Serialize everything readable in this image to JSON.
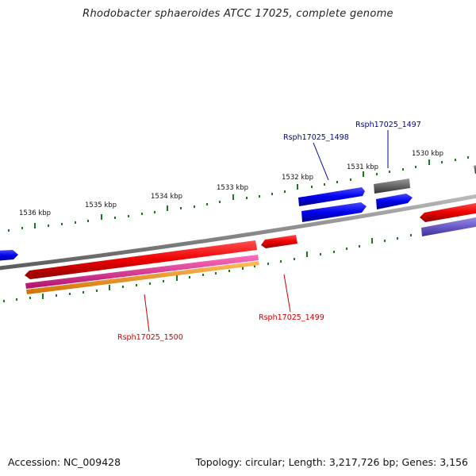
{
  "title": "Rhodobacter sphaeroides ATCC 17025, complete genome",
  "accession": "Accession: NC_009428",
  "stats": "Topology: circular; Length: 3,217,726 bp; Genes: 3,156",
  "colors": {
    "backbone": "#888888",
    "tick": "#1a7a1a",
    "forward_gene": "#0000ee",
    "reverse_gene": "#ee0000",
    "label_blue": "#000099",
    "label_red": "#cc0000",
    "grey_gene": "#666666",
    "magenta_gene": "#e0208a",
    "orange_gene": "#f59a10",
    "violet_gene": "#6a5acd"
  },
  "scale": {
    "unit": "kbp",
    "outer_labels": [
      {
        "kbp": 1536,
        "text": "1536 kbp"
      },
      {
        "kbp": 1535,
        "text": "1535 kbp"
      },
      {
        "kbp": 1534,
        "text": "1534 kbp"
      },
      {
        "kbp": 1533,
        "text": "1533 kbp"
      },
      {
        "kbp": 1532,
        "text": "1532 kbp"
      },
      {
        "kbp": 1531,
        "text": "1531 kbp"
      },
      {
        "kbp": 1530,
        "text": "1530 kbp"
      }
    ]
  },
  "gene_labels": [
    {
      "id": "Rsph17025_1497",
      "text": "Rsph17025_1497",
      "strand": "forward"
    },
    {
      "id": "Rsph17025_1498",
      "text": "Rsph17025_1498",
      "strand": "forward"
    },
    {
      "id": "Rsph17025_1499",
      "text": "Rsph17025_1499",
      "strand": "reverse"
    },
    {
      "id": "Rsph17025_1500",
      "text": "Rsph17025_1500",
      "strand": "reverse"
    }
  ]
}
